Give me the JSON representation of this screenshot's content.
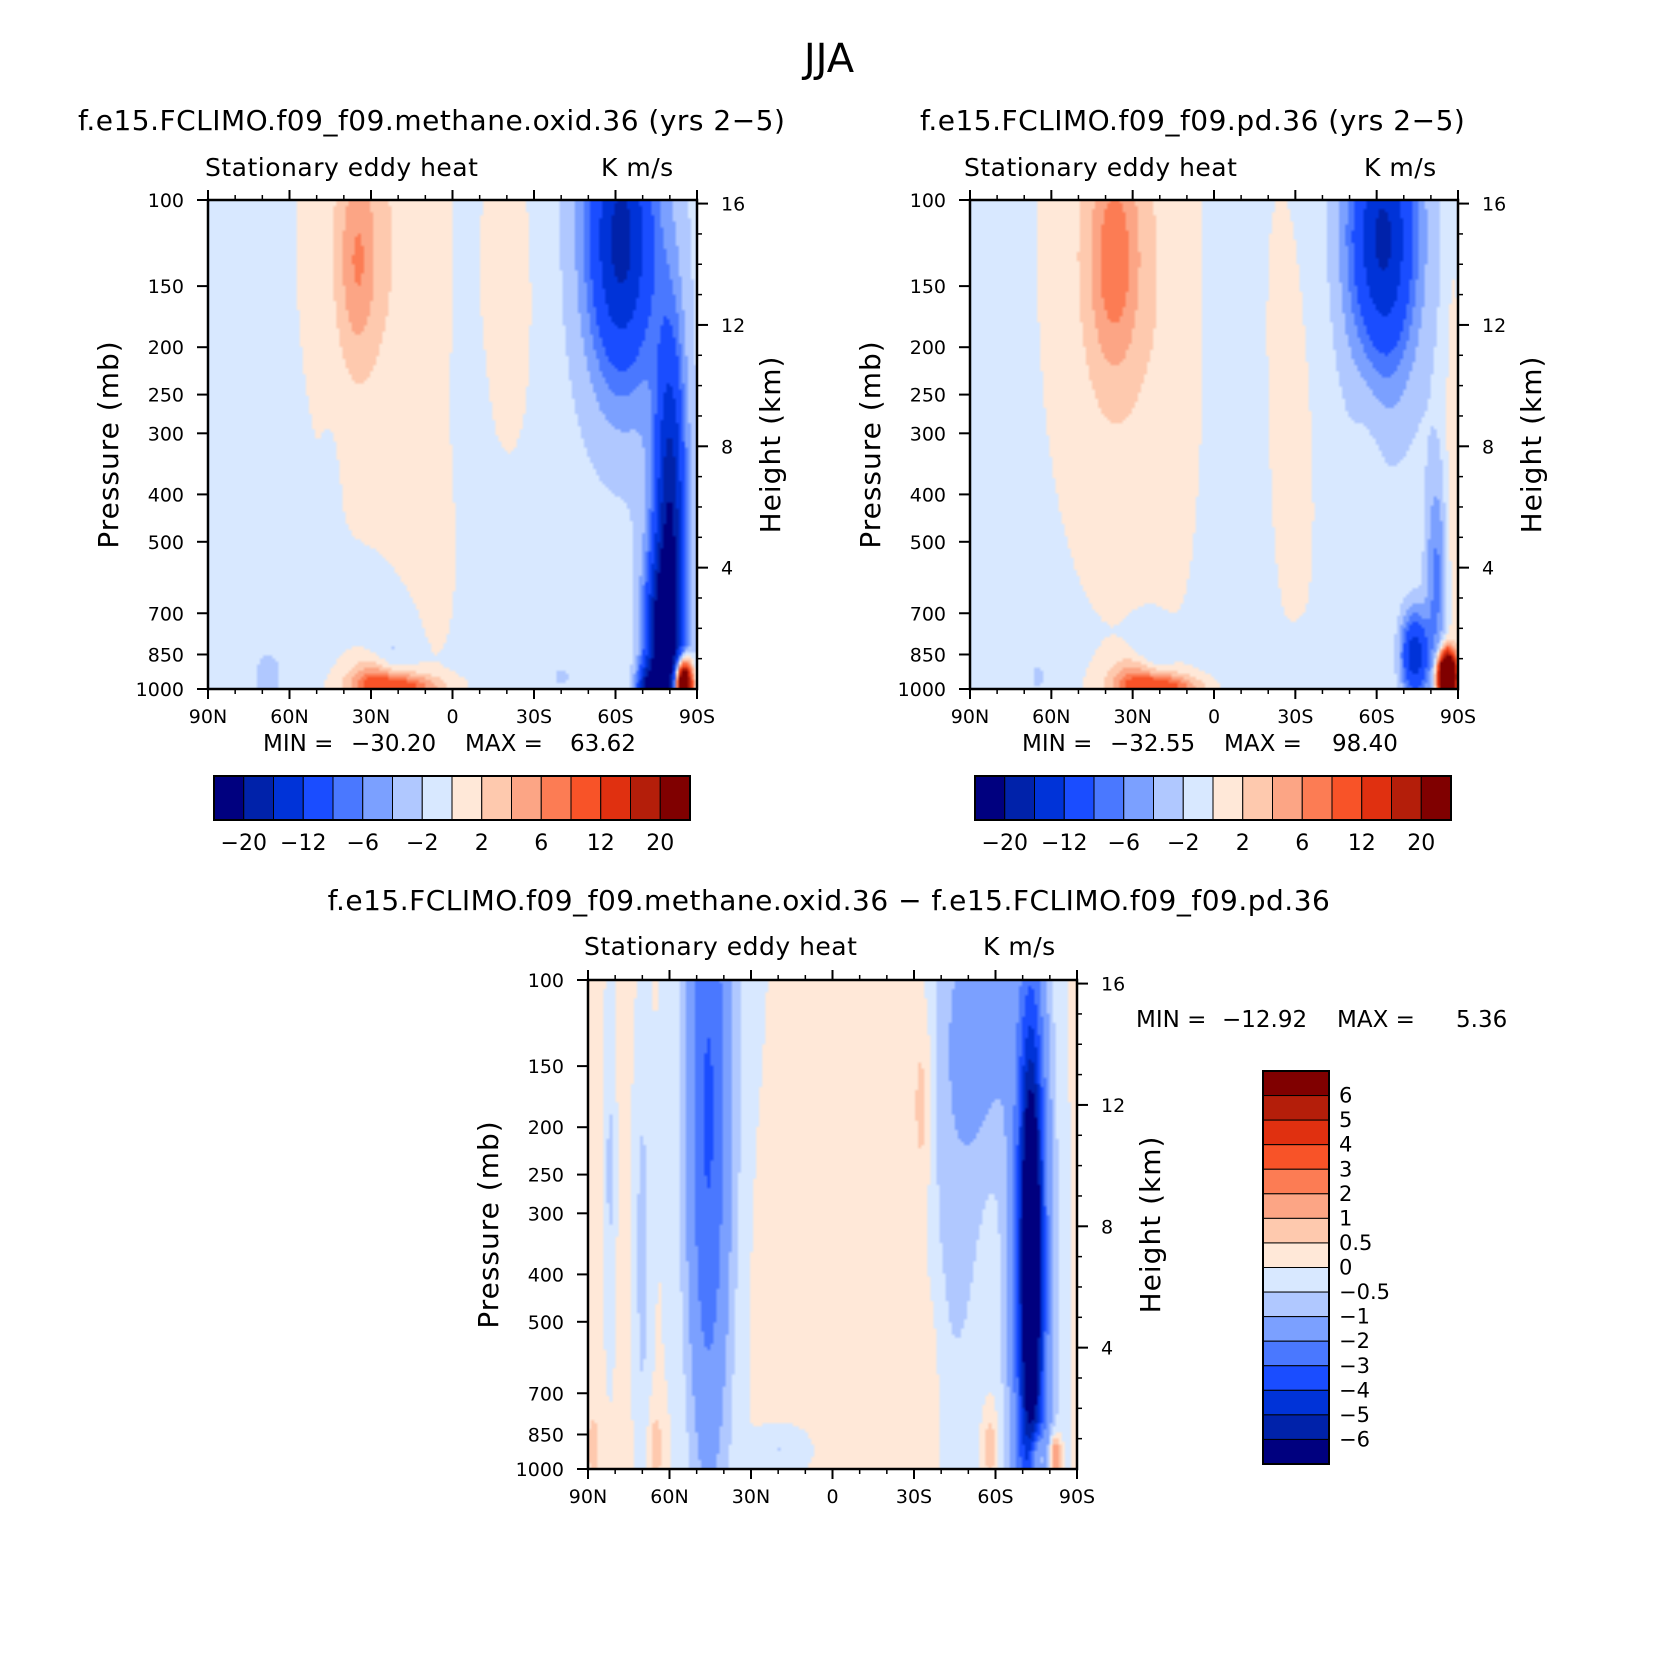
{
  "figure_title": "JJA",
  "colors": {
    "min20": "#00007f",
    "m16": "#0022aa",
    "m12": "#0033d8",
    "m8": "#1a4dff",
    "m6": "#4a78ff",
    "m4": "#7ba0ff",
    "m2": "#b0c8ff",
    "m0": "#d8e8ff",
    "p0": "#ffe8d8",
    "p2": "#fec9ae",
    "p4": "#fca585",
    "p6": "#fc7c54",
    "p8": "#f85328",
    "p12": "#e03010",
    "p16": "#b41e0a",
    "p20": "#800000"
  },
  "chart_data": [
    {
      "type": "heatmap",
      "title": "f.e15.FCLIMO.f09_f09.methane.oxid.36 (yrs 2−5)",
      "variable": "Stationary eddy heat",
      "units": "K m/s",
      "xlabel": "",
      "ylabel": "Pressure (mb)",
      "ylabel_right": "Height (km)",
      "x_ticks": [
        "90N",
        "60N",
        "30N",
        "0",
        "30S",
        "60S",
        "90S"
      ],
      "x_range": [
        90,
        -90
      ],
      "y_ticks": [
        100,
        150,
        200,
        250,
        300,
        400,
        500,
        700,
        850,
        1000
      ],
      "y_range": [
        1000,
        100
      ],
      "height_ticks": [
        4,
        8,
        12,
        16
      ],
      "min_label": "MIN =",
      "min": "−30.20",
      "max_label": "MAX =",
      "max": "63.62",
      "colorbar": {
        "orientation": "horizontal",
        "levels": [
          -20,
          -16,
          -12,
          -8,
          -6,
          -4,
          -2,
          0,
          2,
          4,
          6,
          8,
          12,
          16,
          20
        ],
        "labels": [
          "−20",
          "−12",
          "−6",
          "−2",
          "2",
          "6",
          "12",
          "20"
        ]
      }
    },
    {
      "type": "heatmap",
      "title": "f.e15.FCLIMO.f09_f09.pd.36 (yrs 2−5)",
      "variable": "Stationary eddy heat",
      "units": "K m/s",
      "xlabel": "",
      "ylabel": "Pressure (mb)",
      "ylabel_right": "Height (km)",
      "x_ticks": [
        "90N",
        "60N",
        "30N",
        "0",
        "30S",
        "60S",
        "90S"
      ],
      "x_range": [
        90,
        -90
      ],
      "y_ticks": [
        100,
        150,
        200,
        250,
        300,
        400,
        500,
        700,
        850,
        1000
      ],
      "y_range": [
        1000,
        100
      ],
      "height_ticks": [
        4,
        8,
        12,
        16
      ],
      "min_label": "MIN =",
      "min": "−32.55",
      "max_label": "MAX =",
      "max": "98.40",
      "colorbar": {
        "orientation": "horizontal",
        "levels": [
          -20,
          -16,
          -12,
          -8,
          -6,
          -4,
          -2,
          0,
          2,
          4,
          6,
          8,
          12,
          16,
          20
        ],
        "labels": [
          "−20",
          "−12",
          "−6",
          "−2",
          "2",
          "6",
          "12",
          "20"
        ]
      }
    },
    {
      "type": "heatmap",
      "title": "f.e15.FCLIMO.f09_f09.methane.oxid.36 − f.e15.FCLIMO.f09_f09.pd.36",
      "variable": "Stationary eddy heat",
      "units": "K m/s",
      "xlabel": "",
      "ylabel": "Pressure (mb)",
      "ylabel_right": "Height (km)",
      "x_ticks": [
        "90N",
        "60N",
        "30N",
        "0",
        "30S",
        "60S",
        "90S"
      ],
      "x_range": [
        90,
        -90
      ],
      "y_ticks": [
        100,
        150,
        200,
        250,
        300,
        400,
        500,
        700,
        850,
        1000
      ],
      "y_range": [
        1000,
        100
      ],
      "height_ticks": [
        4,
        8,
        12,
        16
      ],
      "min_label": "MIN =",
      "min": "−12.92",
      "max_label": "MAX =",
      "max": "5.36",
      "colorbar": {
        "orientation": "vertical",
        "levels": [
          -6,
          -5,
          -4,
          -3,
          -2,
          -1,
          -0.5,
          0,
          0.5,
          1,
          2,
          3,
          4,
          5,
          6
        ],
        "labels": [
          "6",
          "5",
          "4",
          "3",
          "2",
          "1",
          "0.5",
          "0",
          "−0.5",
          "−1",
          "−2",
          "−3",
          "−4",
          "−5",
          "−6"
        ]
      }
    }
  ]
}
